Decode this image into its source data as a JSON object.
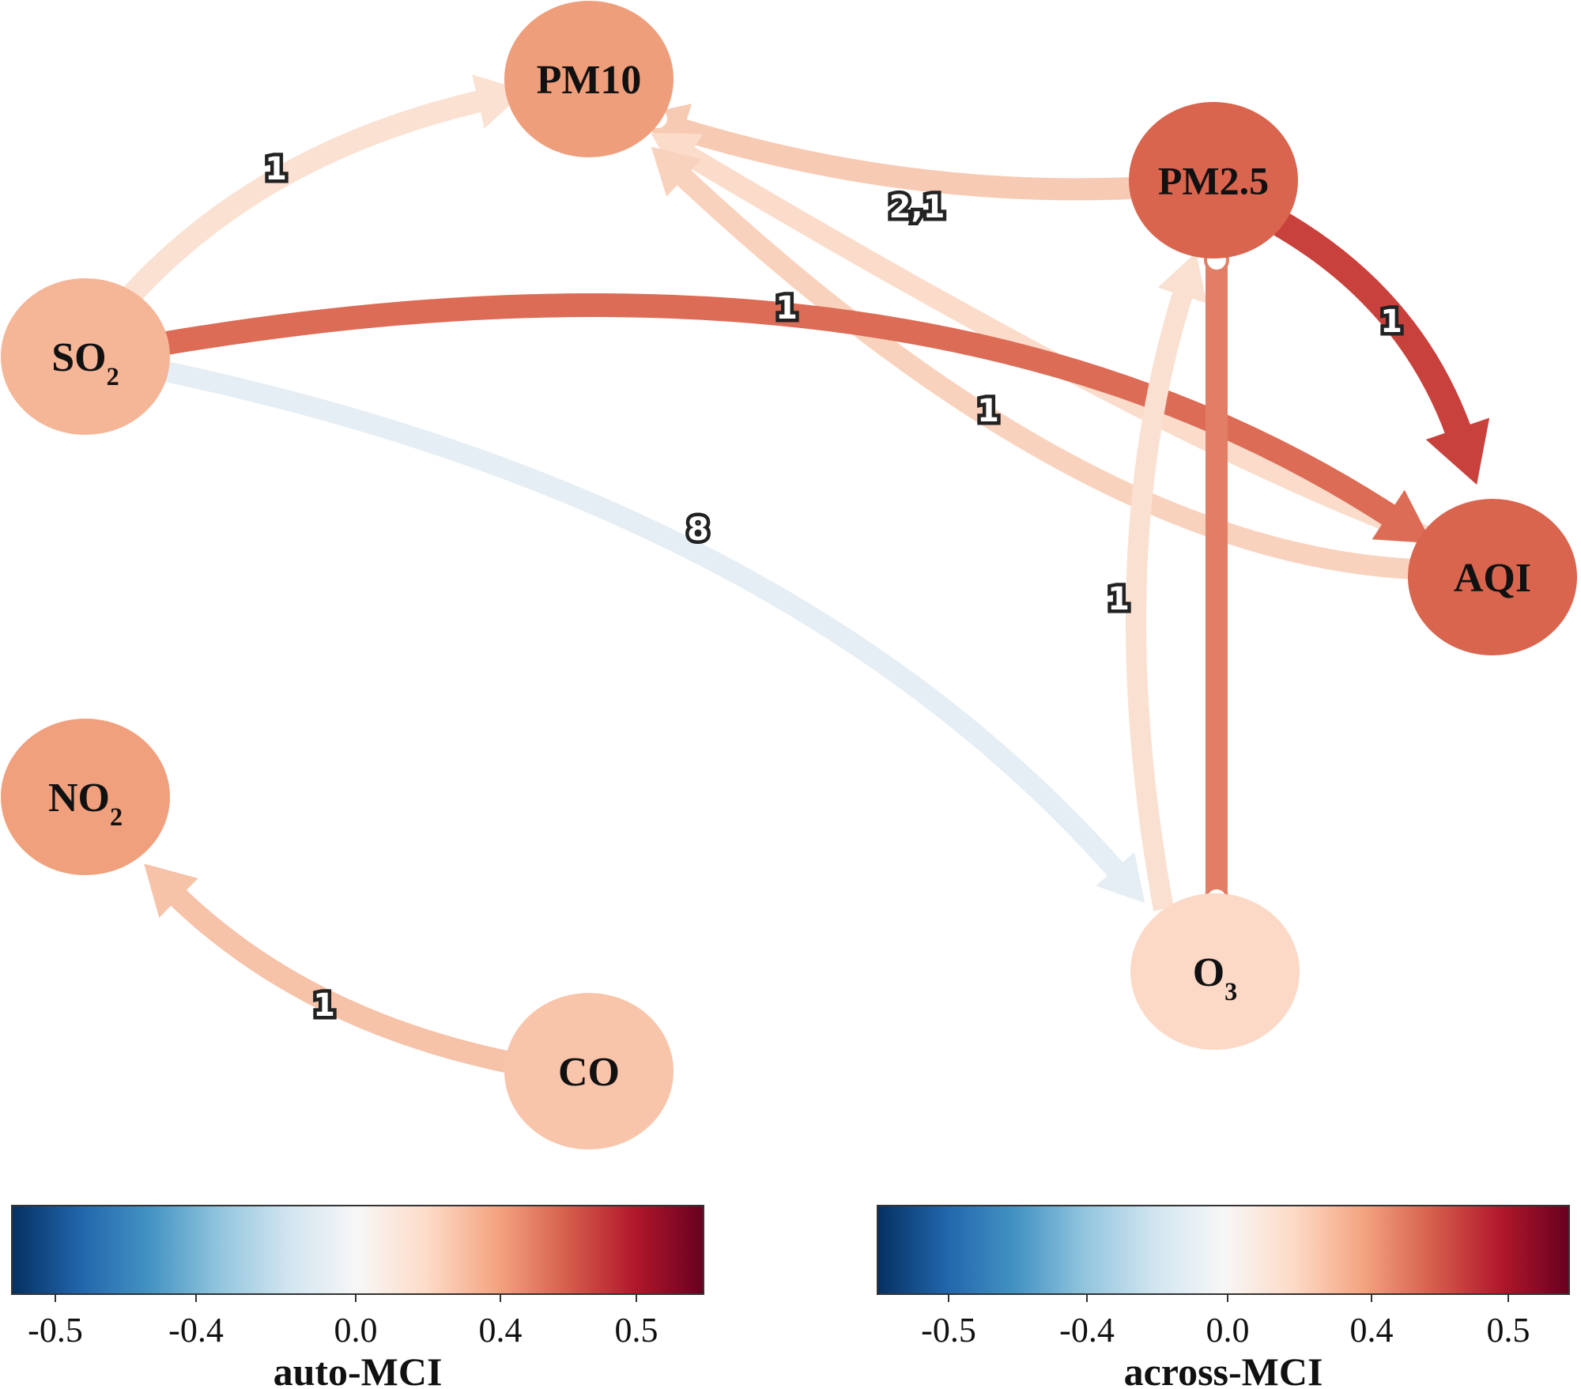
{
  "nodes": [
    {
      "id": "PM10",
      "label": "PM10",
      "sub": "",
      "color": "#ef9e7b"
    },
    {
      "id": "PM2.5",
      "label": "PM2.5",
      "sub": "",
      "color": "#d9654f"
    },
    {
      "id": "SO2",
      "label": "SO",
      "sub": "2",
      "color": "#f5b597"
    },
    {
      "id": "AQI",
      "label": "AQI",
      "sub": "",
      "color": "#d9654f"
    },
    {
      "id": "NO2",
      "label": "NO",
      "sub": "2",
      "color": "#f0a07d"
    },
    {
      "id": "O3",
      "label": "O",
      "sub": "3",
      "color": "#fbd9c6"
    },
    {
      "id": "CO",
      "label": "CO",
      "sub": "",
      "color": "#f8c4aa"
    }
  ],
  "edges": [
    {
      "name": "edge-so2-pm10",
      "from": "SO2",
      "to": "PM10",
      "label": "1",
      "color": "#fbe1d2",
      "directed": true
    },
    {
      "name": "edge-pm25-pm10",
      "from": "PM2.5",
      "to": "PM10",
      "label": "2,1",
      "color": "#f7cab3",
      "directed": true
    },
    {
      "name": "edge-aqi-pm10",
      "from": "AQI",
      "to": "PM10",
      "label": "",
      "color": "#fbdccb",
      "directed": true
    },
    {
      "name": "edge-aqi-pm10-lower",
      "from": "AQI",
      "to": "PM10",
      "label": "1",
      "color": "#f9d2bd",
      "directed": true
    },
    {
      "name": "edge-so2-aqi",
      "from": "SO2",
      "to": "AQI",
      "label": "1",
      "color": "#dc6c56",
      "directed": true
    },
    {
      "name": "edge-pm25-aqi",
      "from": "PM2.5",
      "to": "AQI",
      "label": "1",
      "color": "#c9413c",
      "directed": true
    },
    {
      "name": "edge-so2-o3",
      "from": "SO2",
      "to": "O3",
      "label": "8",
      "color": "#e5eef4",
      "directed": true
    },
    {
      "name": "edge-o3-pm25",
      "from": "O3",
      "to": "PM2.5",
      "label": "1",
      "color": "#fae0d1",
      "directed": true
    },
    {
      "name": "edge-pm25-o3",
      "from": "PM2.5",
      "to": "O3",
      "label": "",
      "color": "#e27e66",
      "directed": false
    },
    {
      "name": "edge-co-no2",
      "from": "CO",
      "to": "NO2",
      "label": "1",
      "color": "#f6c2a8",
      "directed": true
    }
  ],
  "colorbars": [
    {
      "name": "auto-mci-colorbar",
      "title": "auto-MCI",
      "ticks": [
        "-0.5",
        "-0.4",
        "0.0",
        "0.4",
        "0.5"
      ]
    },
    {
      "name": "across-mci-colorbar",
      "title": "across-MCI",
      "ticks": [
        "-0.5",
        "-0.4",
        "0.0",
        "0.4",
        "0.5"
      ]
    }
  ],
  "colormap": [
    "#053061",
    "#2166ac",
    "#4393c3",
    "#92c5de",
    "#d1e5f0",
    "#f7f7f7",
    "#fddbc7",
    "#f4a582",
    "#d6604d",
    "#b2182b",
    "#67001f"
  ],
  "background_color": "#ffffff"
}
